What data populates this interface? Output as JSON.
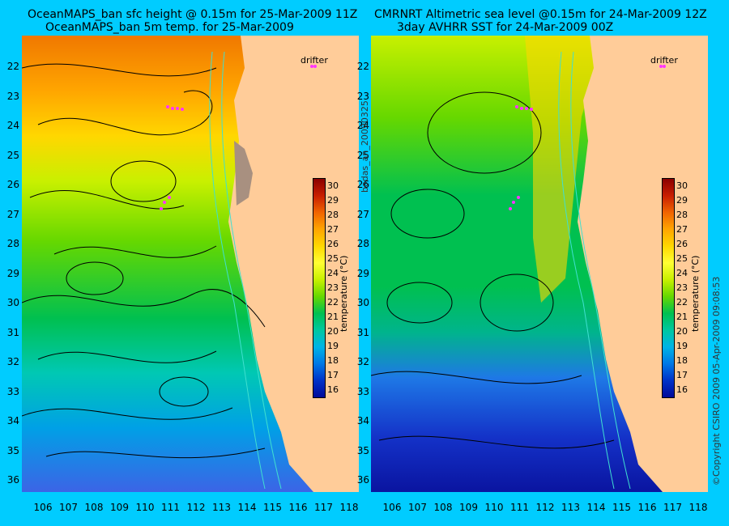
{
  "titles": {
    "left_line1": "OceanMAPS_ban sfc height @ 0.15m for 25-Mar-2009 11Z",
    "left_line2": "OceanMAPS_ban 5m temp. for 25-Mar-2009",
    "right_line1": "CMRNRT Altimetric sea level  @0.15m  for 24-Mar-2009 12Z",
    "right_line2": "3day AVHRR SST for 24-Mar-2009 00Z"
  },
  "axes": {
    "y_ticks": [
      "22",
      "23",
      "24",
      "25",
      "26",
      "27",
      "28",
      "29",
      "30",
      "31",
      "32",
      "33",
      "34",
      "35",
      "36"
    ],
    "x_ticks": [
      "106",
      "107",
      "108",
      "109",
      "110",
      "111",
      "112",
      "113",
      "114",
      "115",
      "116",
      "117",
      "118"
    ]
  },
  "colorbar": {
    "ticks": [
      "30",
      "29",
      "28",
      "27",
      "26",
      "25",
      "24",
      "23",
      "22",
      "21",
      "20",
      "19",
      "18",
      "17",
      "16"
    ],
    "label": "temperature (°C)",
    "colors": [
      "#8b0000",
      "#c81e00",
      "#f06400",
      "#ffa500",
      "#ffd700",
      "#ffff33",
      "#c8f000",
      "#66d800",
      "#00c050",
      "#00c8a0",
      "#00b4e6",
      "#0078e6",
      "#0032c8",
      "#000a9a"
    ]
  },
  "legend": {
    "drifter": "drifter"
  },
  "side_labels": {
    "id": "bodas_an_20090325",
    "copyright": "©Copyright CSIRO 2009   05-Apr-2009 09:08:53"
  }
}
